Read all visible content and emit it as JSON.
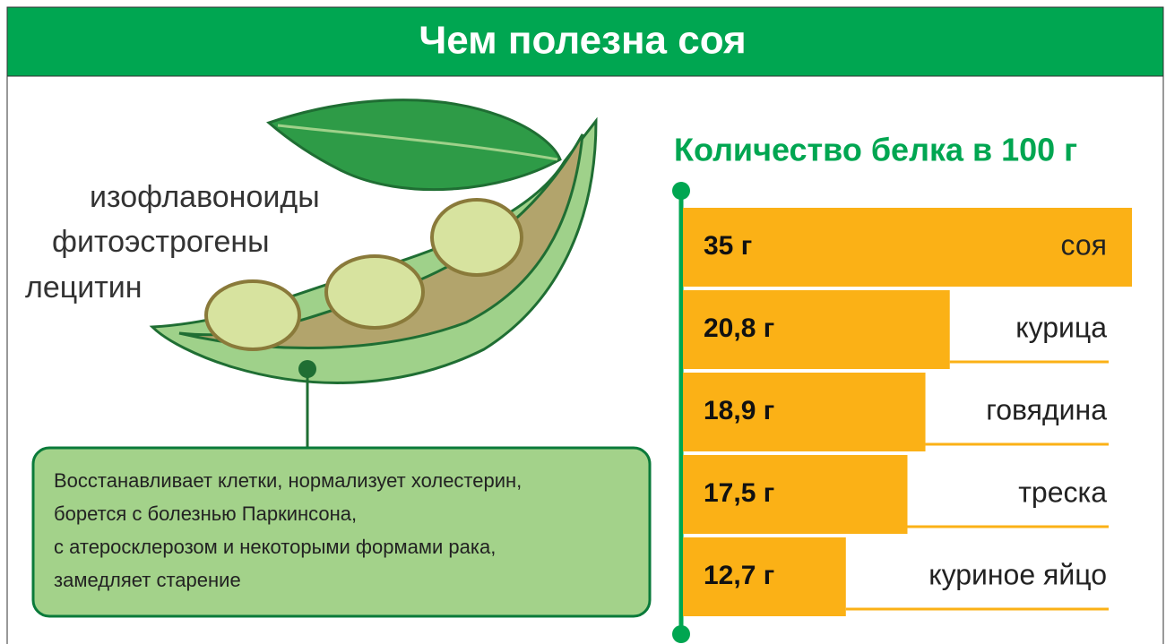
{
  "header": {
    "title": "Чем полезна соя"
  },
  "illustration_labels": [
    "изофлавоноиды",
    "фитоэстрогены",
    "лецитин"
  ],
  "description": [
    "Восстанавливает клетки, нормализует холестерин,",
    "борется с болезнью Паркинсона,",
    "с атеросклерозом и некоторыми формами рака,",
    "замедляет старение"
  ],
  "chart_data": {
    "type": "hbar",
    "title": "Количество белка в 100 г",
    "categories": [
      "соя",
      "курица",
      "говядина",
      "треска",
      "куриное яйцо"
    ],
    "values": [
      35,
      20.8,
      18.9,
      17.5,
      12.7
    ],
    "value_labels": [
      "35 г",
      "20,8 г",
      "18,9 г",
      "17,5 г",
      "12,7 г"
    ],
    "color": "#fbb116",
    "xlim": [
      0,
      35
    ]
  }
}
